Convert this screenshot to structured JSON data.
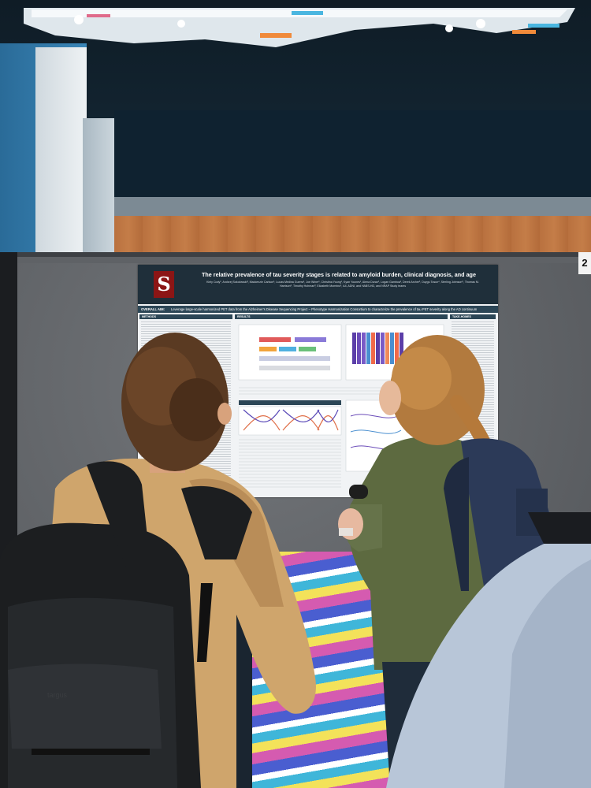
{
  "scene": {
    "description_free": true
  },
  "poster": {
    "logo_letter": "S",
    "title": "The relative prevalence of tau severity stages is related to amyloid burden, clinical diagnosis, and age",
    "authors": "Kiely Cody¹, Andrzej Sokolowski², Mackenzie Carlson¹, Lucas Medina Guerra¹, Joe Winer¹, Christina Young¹, Kyan Younes¹, Alena Duran¹, Logan Gamboa¹, Derek Archer³, Duygu Tosun⁴, Sterling Johnson⁵, Thomas M. Harrison⁶, Timothy Hohman³, Elizabeth Mormino¹, A4, ADNI, and HABS-HD, and NRAP Study teams",
    "overview_label": "OVERALL AIM:",
    "overview_text": "Leverage large-scale harmonized PET data from the Alzheimer's Disease Sequencing Project – Phenotype Harmonization Consortium to characterize the prevalence of tau PET severity along the AD continuum",
    "sections": {
      "methods": "METHODS",
      "results": "RESULTS",
      "take_homes": "TAKE-HOMES"
    }
  },
  "board_number": "2",
  "colors": {
    "poster_header": "#1f2f3a",
    "stanford_red": "#8c1515",
    "board_fabric": "#65686c"
  }
}
